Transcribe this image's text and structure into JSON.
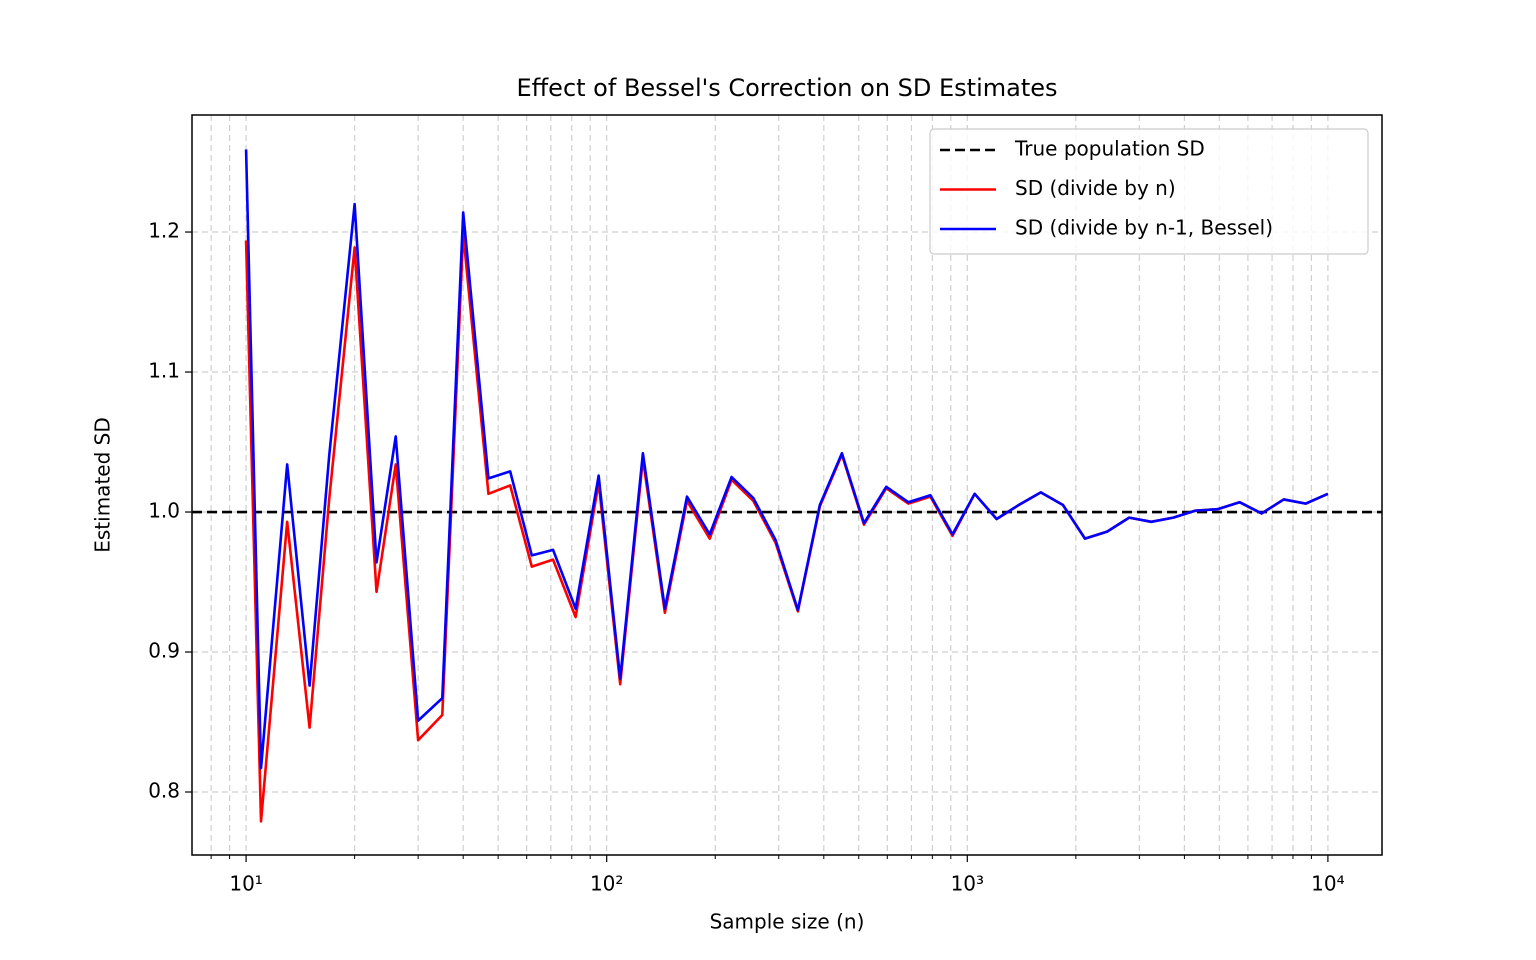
{
  "chart_data": {
    "type": "line",
    "title": "Effect of Bessel's Correction on SD Estimates",
    "xlabel": "Sample size (n)",
    "ylabel": "Estimated SD",
    "xscale": "log",
    "x": [
      10,
      11,
      13,
      15,
      17,
      20,
      23,
      26,
      30,
      35,
      40,
      47,
      54,
      62,
      71,
      82,
      95,
      109,
      126,
      145,
      167,
      193,
      222,
      255,
      294,
      339,
      390,
      449,
      517,
      596,
      686,
      790,
      910,
      1048,
      1206,
      1389,
      1599,
      1842,
      2120,
      2442,
      2811,
      3237,
      3727,
      4291,
      4941,
      5689,
      6551,
      7543,
      8685,
      10000
    ],
    "hline": {
      "name": "True population SD",
      "value": 1,
      "color": "#000000"
    },
    "series": [
      {
        "name": "SD (divide by n)",
        "color": "#ff0000",
        "values": [
          1.194,
          0.779,
          0.993,
          0.846,
          1.009,
          1.189,
          0.943,
          1.034,
          0.837,
          0.855,
          1.199,
          1.013,
          1.019,
          0.961,
          0.966,
          0.925,
          1.021,
          0.877,
          1.038,
          0.928,
          1.008,
          0.981,
          1.023,
          1.008,
          0.978,
          0.929,
          1.004,
          1.041,
          0.991,
          1.017,
          1.006,
          1.011,
          0.983,
          1.013,
          0.995,
          1.005,
          1.014,
          1.005,
          0.981,
          0.986,
          0.996,
          0.993,
          0.996,
          1.001,
          1.002,
          1.007,
          0.999,
          1.009,
          1.006,
          1.013
        ]
      },
      {
        "name": "SD (divide by n-1, Bessel)",
        "color": "#0000ff",
        "values": [
          1.259,
          0.817,
          1.034,
          0.876,
          1.04,
          1.22,
          0.964,
          1.054,
          0.851,
          0.867,
          1.214,
          1.024,
          1.029,
          0.969,
          0.973,
          0.931,
          1.026,
          0.881,
          1.042,
          0.931,
          1.011,
          0.984,
          1.025,
          1.01,
          0.98,
          0.93,
          1.005,
          1.042,
          0.992,
          1.018,
          1.007,
          1.012,
          0.984,
          1.013,
          0.995,
          1.005,
          1.014,
          1.005,
          0.981,
          0.986,
          0.996,
          0.993,
          0.996,
          1.001,
          1.002,
          1.007,
          0.999,
          1.009,
          1.006,
          1.013
        ]
      }
    ],
    "xlim": [
      7.08,
      14125
    ],
    "xticks": [
      {
        "value": 10,
        "label": "10¹"
      },
      {
        "value": 100,
        "label": "10²"
      },
      {
        "value": 1000,
        "label": "10³"
      },
      {
        "value": 10000,
        "label": "10⁴"
      }
    ],
    "xticks_minor": [
      8,
      9,
      20,
      30,
      40,
      50,
      60,
      70,
      80,
      90,
      200,
      300,
      400,
      500,
      600,
      700,
      800,
      900,
      2000,
      3000,
      4000,
      5000,
      6000,
      7000,
      8000,
      9000
    ],
    "ylim": [
      0.755,
      1.2836
    ],
    "yticks": [
      0.8,
      0.9,
      {
        "value": 1,
        "label": "1.0"
      },
      1.1,
      1.2
    ],
    "grid": true,
    "legend": "upper right"
  }
}
